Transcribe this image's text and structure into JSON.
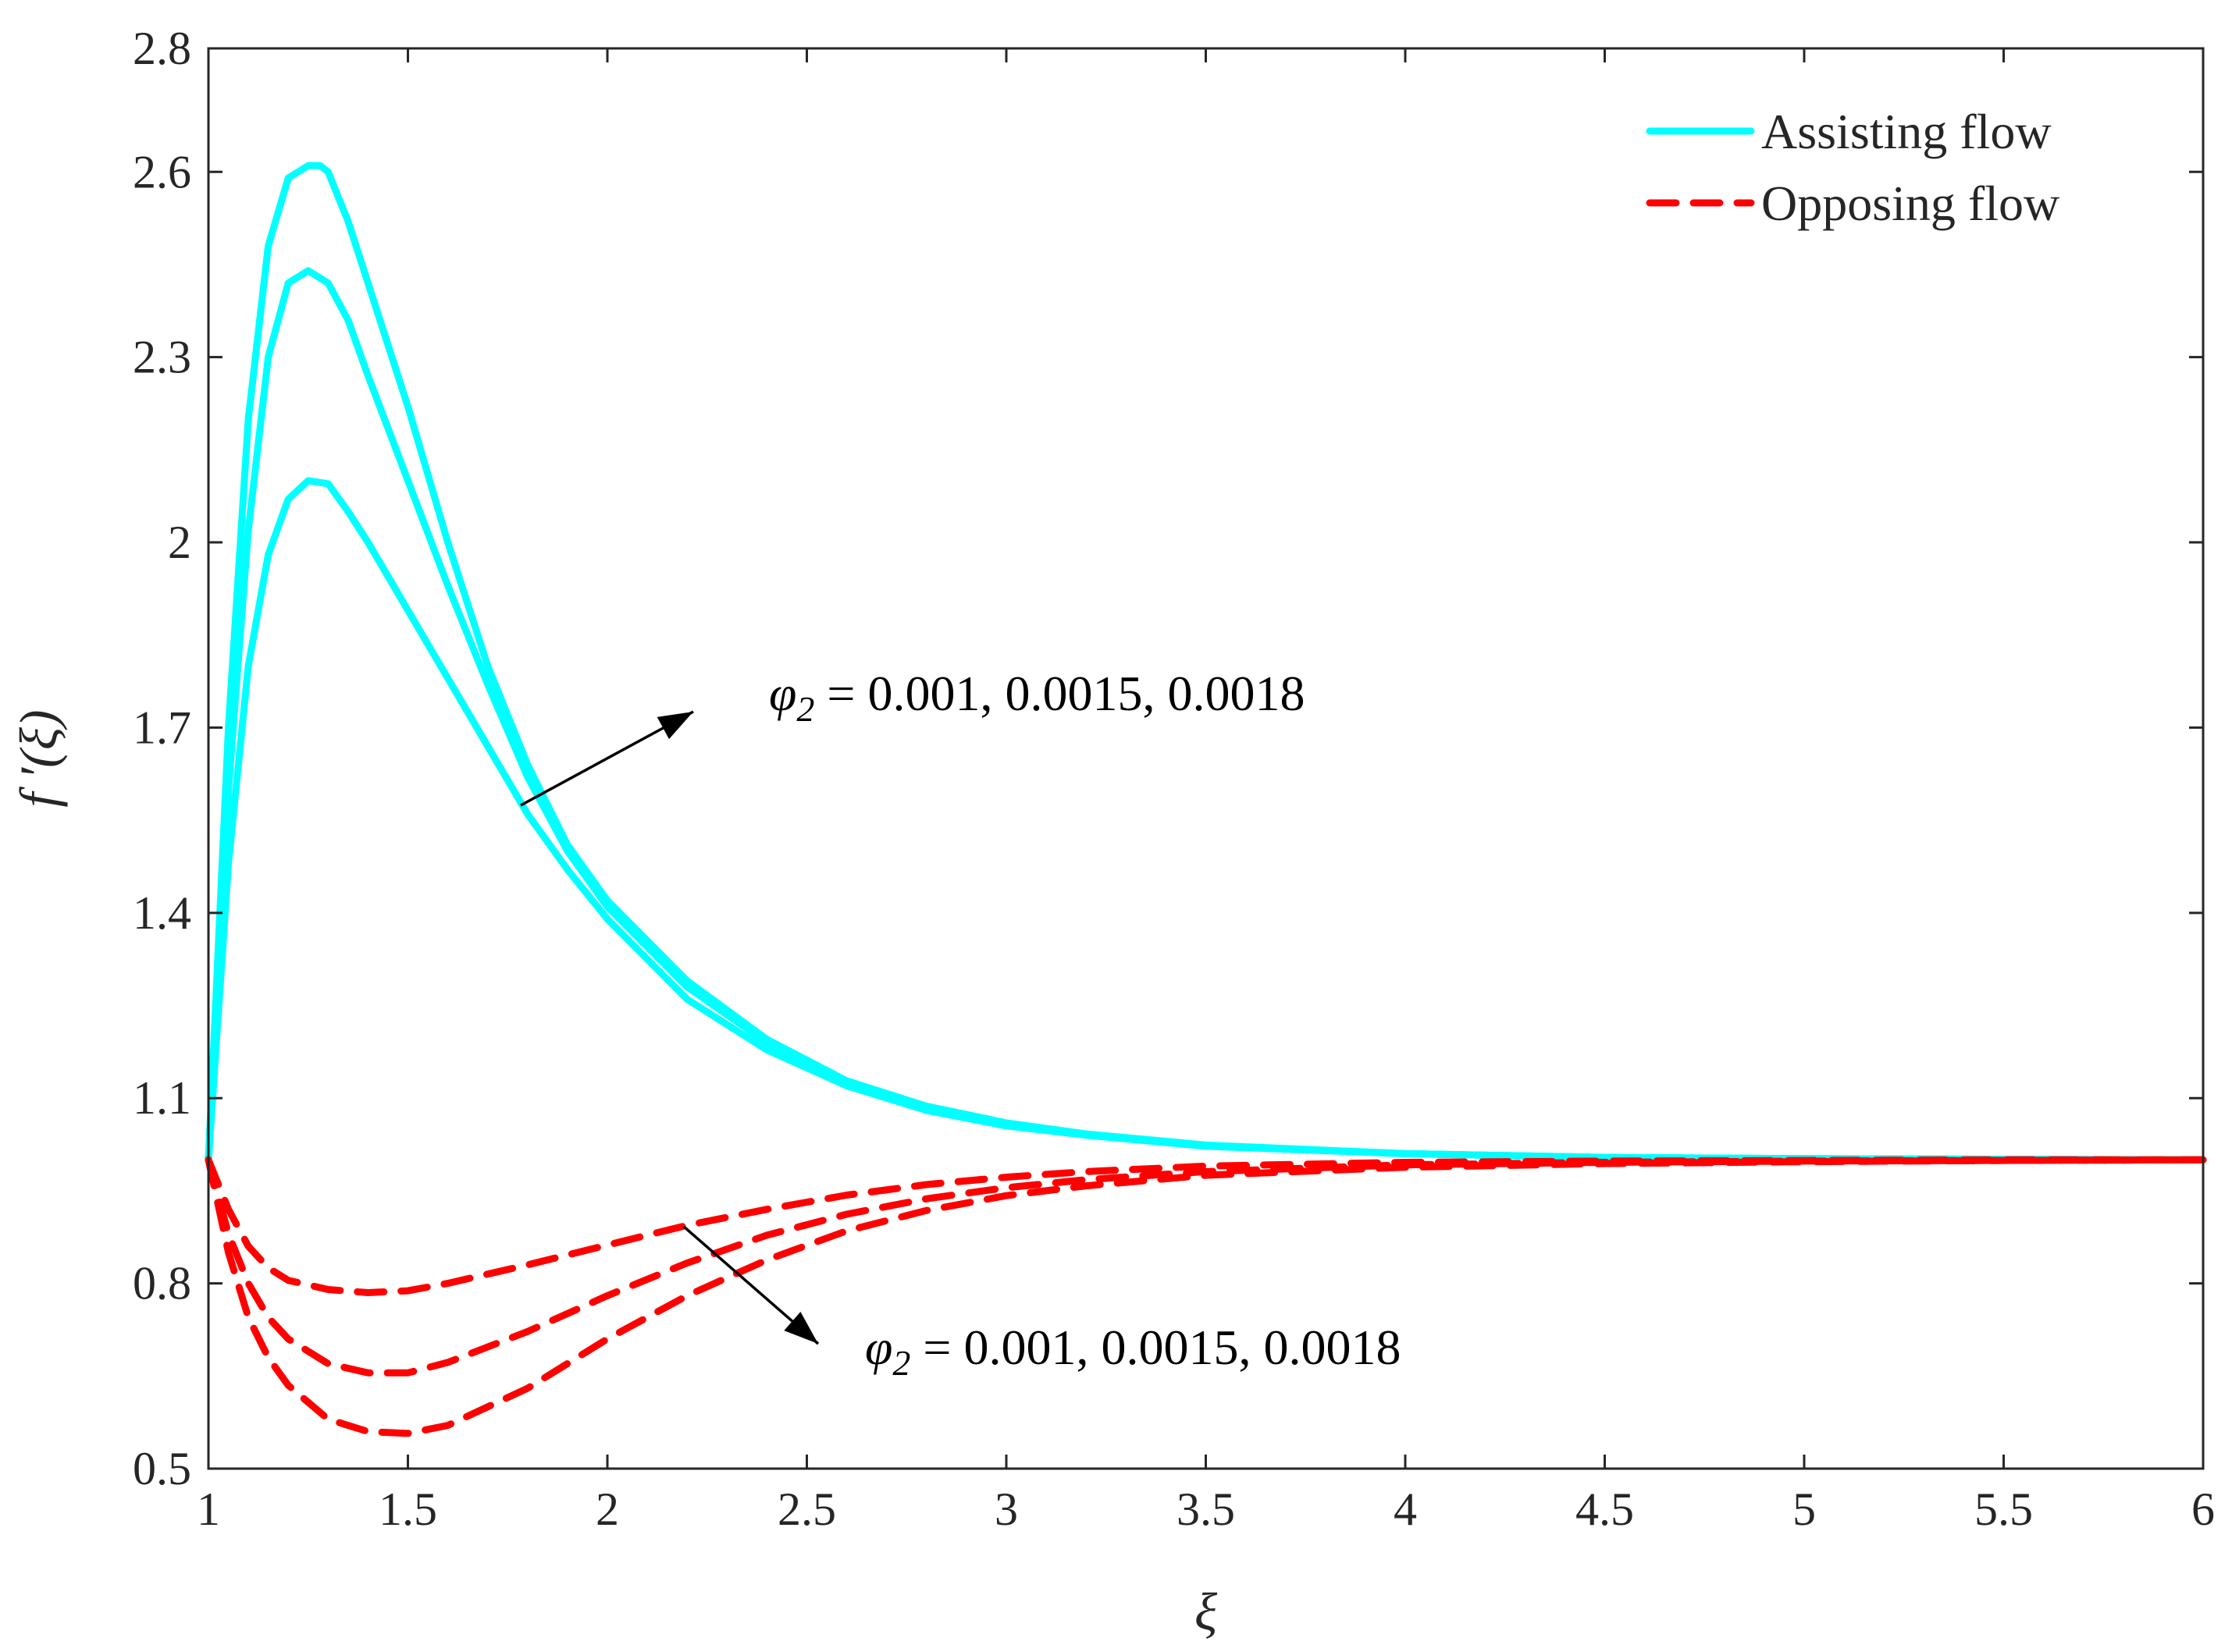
{
  "chart_data": {
    "type": "line",
    "title": "",
    "xlabel": "ξ",
    "ylabel": "f ′(ξ)",
    "xlim": [
      1,
      6
    ],
    "ylim": [
      0.5,
      2.8
    ],
    "xticks": [
      1,
      1.5,
      2,
      2.5,
      3,
      3.5,
      4,
      4.5,
      5,
      5.5,
      6
    ],
    "yticks": [
      0.5,
      0.8,
      1.1,
      1.4,
      1.7,
      2,
      2.3,
      2.6,
      2.8
    ],
    "xtick_labels": [
      "1",
      "1.5",
      "2",
      "2.5",
      "3",
      "3.5",
      "4",
      "4.5",
      "5",
      "5.5",
      "6"
    ],
    "ytick_labels": [
      "0.5",
      "0.8",
      "1.1",
      "1.4",
      "1.7",
      "2",
      "2.3",
      "2.6",
      "2.8"
    ],
    "grid": false,
    "legend": {
      "location": "top-right",
      "entries": [
        {
          "label": "Assisting flow",
          "color": "#00FFFF",
          "style": "solid"
        },
        {
          "label": "Opposing flow",
          "color": "#FF0000",
          "style": "dashed"
        }
      ]
    },
    "annotations": [
      {
        "id": "assisting",
        "text_symbol": "φ",
        "text_sub": "2",
        "text_rest": " = 0.001, 0.0015, 0.0018"
      },
      {
        "id": "opposing",
        "text_symbol": "φ",
        "text_sub": "2",
        "text_rest": " = 0.001, 0.0015, 0.0018"
      }
    ],
    "series": [
      {
        "name": "Assisting flow, φ2 = 0.001",
        "group": "Assisting flow",
        "color": "#00FFFF",
        "style": "solid",
        "x": [
          1,
          1.05,
          1.1,
          1.15,
          1.2,
          1.25,
          1.3,
          1.35,
          1.4,
          1.5,
          1.6,
          1.7,
          1.8,
          1.9,
          2.0,
          2.2,
          2.4,
          2.6,
          2.8,
          3.0,
          3.2,
          3.5,
          4.0,
          4.5,
          5.0,
          5.5,
          6.0
        ],
        "y": [
          1.0,
          1.48,
          1.8,
          1.98,
          2.07,
          2.1,
          2.095,
          2.05,
          2.0,
          1.89,
          1.78,
          1.67,
          1.56,
          1.47,
          1.39,
          1.26,
          1.178,
          1.12,
          1.08,
          1.055,
          1.04,
          1.022,
          1.01,
          1.004,
          1.002,
          1.001,
          1.0
        ]
      },
      {
        "name": "Assisting flow, φ2 = 0.0015",
        "group": "Assisting flow",
        "color": "#00FFFF",
        "style": "solid",
        "x": [
          1,
          1.05,
          1.1,
          1.15,
          1.2,
          1.25,
          1.3,
          1.35,
          1.4,
          1.5,
          1.6,
          1.7,
          1.8,
          1.9,
          2.0,
          2.2,
          2.4,
          2.6,
          2.8,
          3.0,
          3.2,
          3.5,
          4.0,
          4.5,
          5.0,
          5.5,
          6.0
        ],
        "y": [
          1.0,
          1.6,
          2.02,
          2.3,
          2.42,
          2.44,
          2.42,
          2.36,
          2.27,
          2.1,
          1.93,
          1.77,
          1.62,
          1.5,
          1.41,
          1.28,
          1.19,
          1.125,
          1.085,
          1.058,
          1.04,
          1.023,
          1.01,
          1.004,
          1.002,
          1.001,
          1.0
        ]
      },
      {
        "name": "Assisting flow, φ2 = 0.0018",
        "group": "Assisting flow",
        "color": "#00FFFF",
        "style": "solid",
        "x": [
          1,
          1.05,
          1.1,
          1.15,
          1.2,
          1.25,
          1.28,
          1.3,
          1.35,
          1.4,
          1.5,
          1.6,
          1.7,
          1.8,
          1.9,
          2.0,
          2.2,
          2.4,
          2.6,
          2.8,
          3.0,
          3.2,
          3.5,
          4.0,
          4.5,
          5.0,
          5.5,
          6.0
        ],
        "y": [
          1.0,
          1.7,
          2.2,
          2.48,
          2.59,
          2.61,
          2.61,
          2.6,
          2.52,
          2.42,
          2.22,
          2.0,
          1.8,
          1.64,
          1.51,
          1.42,
          1.29,
          1.195,
          1.128,
          1.087,
          1.06,
          1.042,
          1.024,
          1.01,
          1.004,
          1.002,
          1.001,
          1.0
        ]
      },
      {
        "name": "Opposing flow, φ2 = 0.001",
        "group": "Opposing flow",
        "color": "#FF0000",
        "style": "dashed",
        "x": [
          1,
          1.05,
          1.1,
          1.15,
          1.2,
          1.3,
          1.4,
          1.5,
          1.6,
          1.8,
          2.0,
          2.2,
          2.4,
          2.6,
          2.8,
          3.0,
          3.2,
          3.5,
          4.0,
          4.5,
          5.0,
          5.5,
          6.0
        ],
        "y": [
          1.0,
          0.92,
          0.86,
          0.825,
          0.805,
          0.79,
          0.785,
          0.788,
          0.8,
          0.83,
          0.862,
          0.894,
          0.92,
          0.943,
          0.96,
          0.972,
          0.981,
          0.99,
          0.996,
          0.998,
          0.999,
          1.0,
          1.0
        ]
      },
      {
        "name": "Opposing flow, φ2 = 0.0015",
        "group": "Opposing flow",
        "color": "#FF0000",
        "style": "dashed",
        "x": [
          1,
          1.05,
          1.1,
          1.15,
          1.2,
          1.3,
          1.4,
          1.5,
          1.6,
          1.8,
          2.0,
          2.2,
          2.4,
          2.6,
          2.8,
          3.0,
          3.2,
          3.5,
          4.0,
          4.5,
          5.0,
          5.5,
          6.0
        ],
        "y": [
          1.0,
          0.88,
          0.8,
          0.745,
          0.71,
          0.67,
          0.655,
          0.655,
          0.672,
          0.722,
          0.78,
          0.833,
          0.878,
          0.912,
          0.937,
          0.955,
          0.968,
          0.981,
          0.992,
          0.996,
          0.998,
          0.999,
          1.0
        ]
      },
      {
        "name": "Opposing flow, φ2 = 0.0018",
        "group": "Opposing flow",
        "color": "#FF0000",
        "style": "dashed",
        "x": [
          1,
          1.05,
          1.1,
          1.15,
          1.2,
          1.3,
          1.4,
          1.5,
          1.6,
          1.8,
          2.0,
          2.2,
          2.4,
          2.6,
          2.8,
          3.0,
          3.2,
          3.5,
          4.0,
          4.5,
          5.0,
          5.5,
          6.0
        ],
        "y": [
          1.0,
          0.85,
          0.745,
          0.68,
          0.635,
          0.58,
          0.56,
          0.557,
          0.57,
          0.63,
          0.71,
          0.78,
          0.838,
          0.885,
          0.918,
          0.942,
          0.958,
          0.975,
          0.988,
          0.994,
          0.997,
          0.999,
          1.0
        ]
      }
    ]
  }
}
